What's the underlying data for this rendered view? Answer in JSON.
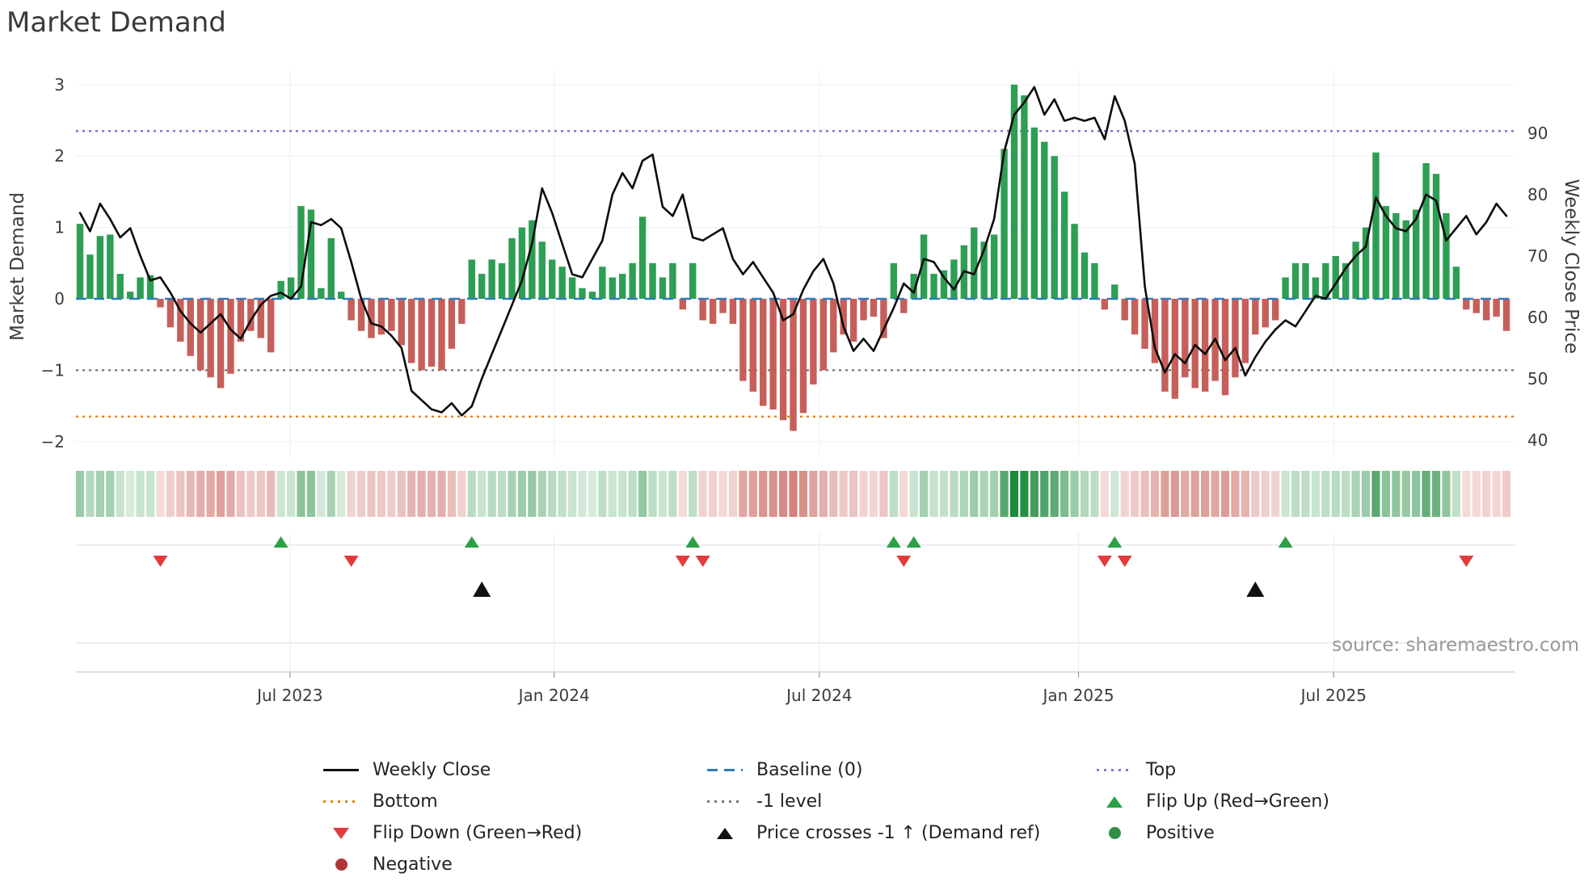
{
  "title": "Market Demand",
  "source": "source: sharemaestro.com",
  "axes": {
    "left_label": "Market Demand",
    "right_label": "Weekly Close Price",
    "left_ticks": [
      {
        "label": "3",
        "value": 3
      },
      {
        "label": "2",
        "value": 2
      },
      {
        "label": "1",
        "value": 1
      },
      {
        "label": "0",
        "value": 0
      },
      {
        "label": "−1",
        "value": -1
      },
      {
        "label": "−2",
        "value": -2
      }
    ],
    "right_ticks": [
      {
        "label": "90",
        "value": 90
      },
      {
        "label": "80",
        "value": 80
      },
      {
        "label": "70",
        "value": 70
      },
      {
        "label": "60",
        "value": 60
      },
      {
        "label": "50",
        "value": 50
      },
      {
        "label": "40",
        "value": 40
      }
    ],
    "x_ticks": [
      {
        "label": "Jul 2023",
        "week": 20.9
      },
      {
        "label": "Jan 2024",
        "week": 47.2
      },
      {
        "label": "Jul 2024",
        "week": 73.6
      },
      {
        "label": "Jan 2025",
        "week": 99.4
      },
      {
        "label": "Jul 2025",
        "week": 124.8
      }
    ]
  },
  "colors": {
    "positive": "#2e9e54",
    "negative": "#c65f5a",
    "line": "#0d0d0d",
    "baseline": "#2d7cc1",
    "top": "#7a7ad8",
    "bottom": "#e8820c",
    "minus_one": "#666666",
    "flip_up": "#2aa146",
    "flip_down": "#e23b3b",
    "price_cross": "#111111",
    "heat_green": "#1d8a3c",
    "heat_red": "#c0453d"
  },
  "legend": {
    "items": [
      {
        "label": "Weekly Close",
        "marker": "black-line"
      },
      {
        "label": "Baseline (0)",
        "marker": "blue-dashed-line"
      },
      {
        "label": "Top",
        "marker": "purple-dotted-line"
      },
      {
        "label": "Bottom",
        "marker": "orange-dotted-line"
      },
      {
        "label": "-1 level",
        "marker": "gray-dotted-line"
      },
      {
        "label": "Flip Up (Red→Green)",
        "marker": "green-up-triangle"
      },
      {
        "label": "Flip Down (Green→Red)",
        "marker": "red-down-triangle"
      },
      {
        "label": "Price crosses -1 ↑ (Demand ref)",
        "marker": "black-up-triangle"
      },
      {
        "label": "Positive",
        "marker": "green-circle"
      },
      {
        "label": "Negative",
        "marker": "dark-red-circle"
      }
    ]
  },
  "chart_data": {
    "type": "bar",
    "subtype": "weekly bar (Market Demand, left axis) + line (Weekly Close Price, right axis) + signal heatmap strip + event marker rows",
    "x_unit": "week_index",
    "left_axis_range": [
      -2.3,
      3.3
    ],
    "right_axis_range": [
      40,
      98
    ],
    "reference_lines": {
      "baseline": 0,
      "top": 2.35,
      "bottom": -1.65,
      "minus_one": -1
    },
    "series": [
      {
        "name": "Market Demand",
        "type": "bar",
        "axis": "left",
        "values": [
          1.05,
          0.62,
          0.88,
          0.9,
          0.35,
          0.1,
          0.3,
          0.33,
          -0.12,
          -0.4,
          -0.6,
          -0.8,
          -1.0,
          -1.1,
          -1.25,
          -1.05,
          -0.6,
          -0.45,
          -0.55,
          -0.75,
          0.25,
          0.3,
          1.3,
          1.25,
          0.15,
          0.85,
          0.1,
          -0.3,
          -0.45,
          -0.55,
          -0.5,
          -0.45,
          -0.65,
          -0.9,
          -1.0,
          -0.95,
          -1.0,
          -0.7,
          -0.35,
          0.55,
          0.35,
          0.55,
          0.5,
          0.85,
          1.0,
          1.1,
          0.8,
          0.55,
          0.45,
          0.3,
          0.15,
          0.1,
          0.45,
          0.3,
          0.35,
          0.5,
          1.15,
          0.5,
          0.3,
          0.5,
          -0.15,
          0.5,
          -0.3,
          -0.35,
          -0.2,
          -0.35,
          -1.15,
          -1.3,
          -1.5,
          -1.55,
          -1.7,
          -1.85,
          -1.6,
          -1.2,
          -1.0,
          -0.75,
          -0.5,
          -0.6,
          -0.3,
          -0.25,
          -0.55,
          0.5,
          -0.2,
          0.35,
          0.9,
          0.35,
          0.4,
          0.55,
          0.75,
          1.0,
          0.8,
          0.9,
          2.1,
          3.0,
          2.85,
          2.4,
          2.2,
          2.0,
          1.5,
          1.05,
          0.65,
          0.5,
          -0.15,
          0.2,
          -0.3,
          -0.5,
          -0.7,
          -0.9,
          -1.3,
          -1.4,
          -1.1,
          -1.25,
          -1.3,
          -1.15,
          -1.35,
          -1.1,
          -0.9,
          -0.5,
          -0.4,
          -0.3,
          0.3,
          0.5,
          0.5,
          0.3,
          0.5,
          0.6,
          0.5,
          0.8,
          1.0,
          2.05,
          1.3,
          1.2,
          1.1,
          1.25,
          1.9,
          1.75,
          1.2,
          0.45,
          -0.15,
          -0.2,
          -0.3,
          -0.25,
          -0.45
        ]
      },
      {
        "name": "Weekly Close",
        "type": "line",
        "axis": "right",
        "values": [
          77,
          74,
          78.5,
          76,
          73,
          74.5,
          70,
          66,
          66.5,
          64,
          61,
          59,
          57.5,
          59,
          60.5,
          58,
          56.5,
          59.5,
          62,
          63.5,
          64,
          63,
          65,
          75.5,
          75,
          76,
          74.5,
          69,
          63,
          59,
          58.5,
          57,
          55,
          48,
          46.5,
          45,
          44.5,
          46,
          44,
          45.5,
          50,
          54,
          58,
          62,
          66,
          72,
          81,
          77,
          72,
          67,
          66.5,
          69.5,
          72.5,
          80,
          83.5,
          81,
          85.5,
          86.5,
          78,
          76.5,
          80,
          73,
          72.5,
          73.5,
          74.5,
          69.5,
          67,
          69,
          66.5,
          64,
          59.5,
          60.5,
          64.5,
          67.5,
          69.5,
          65.5,
          58.5,
          54.5,
          56.5,
          54.5,
          58,
          61.5,
          65.5,
          64,
          69.5,
          69,
          66.5,
          64.5,
          67.5,
          67,
          71,
          76,
          87,
          93,
          95,
          97.5,
          93,
          95.5,
          92,
          92.5,
          92,
          92.5,
          89,
          96,
          92,
          85,
          65,
          55,
          51,
          54,
          52.5,
          55.5,
          54,
          56.5,
          53,
          55,
          50.5,
          53.5,
          56,
          58,
          59.5,
          58.5,
          61,
          63.5,
          63,
          65.5,
          68,
          70,
          71.5,
          79.5,
          76.5,
          74.5,
          74,
          76,
          80,
          79,
          72.5,
          74.5,
          76.5,
          73.5,
          75.5,
          78.5,
          76.5
        ]
      }
    ],
    "markers": {
      "flip_up_weeks": [
        20,
        39,
        61,
        81,
        83,
        103,
        120
      ],
      "flip_down_weeks": [
        8,
        27,
        60,
        62,
        82,
        102,
        104,
        138
      ],
      "price_cross_up_weeks": [
        40,
        117
      ]
    },
    "heatmap": {
      "derived_from": "Market Demand sign and magnitude",
      "rows": 1
    }
  }
}
